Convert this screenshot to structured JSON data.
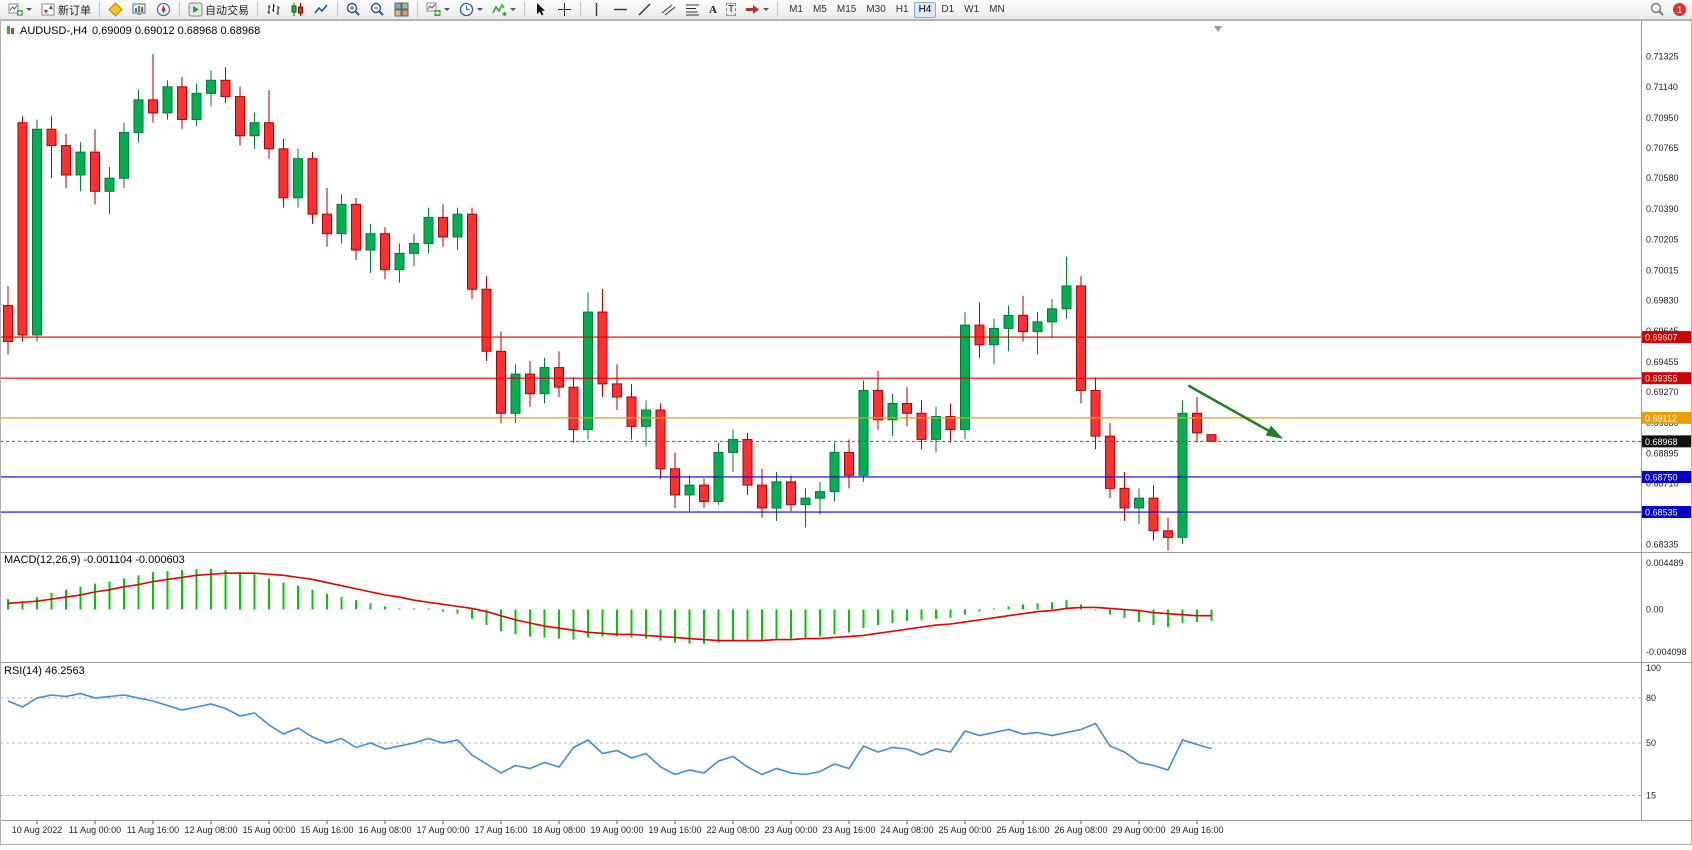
{
  "toolbar": {
    "new_order": "新订单",
    "autotrading": "自动交易",
    "text_tool_glyph": "A",
    "label_tool_glyph": "T",
    "timeframes": [
      "M1",
      "M5",
      "M15",
      "M30",
      "H1",
      "H4",
      "D1",
      "W1",
      "MN"
    ],
    "active_timeframe": "H4",
    "badge": "1"
  },
  "header": {
    "symbol": "AUDUSD-,H4",
    "ohlc": "0.69009 0.69012 0.68968 0.68968"
  },
  "indicators": {
    "macd_label": "MACD(12,26,9) -0.001104 -0.000603",
    "rsi_label": "RSI(14) 46.2563"
  },
  "colors": {
    "bull": "#00b050",
    "bull_border": "#007a38",
    "bear": "#ff3030",
    "bear_border": "#b00000",
    "macd_hist": "#00c800",
    "macd_signal": "#e00000",
    "rsi_line": "#3e8fd0",
    "axis_text": "#222222",
    "current_price_line": "#555555"
  },
  "chart_data": {
    "type": "candlestick",
    "symbol": "AUDUSD",
    "timeframe": "H4",
    "grid": "off",
    "candles": [
      [
        0.698,
        0.6992,
        0.695,
        0.6958
      ],
      [
        0.7092,
        0.7096,
        0.6958,
        0.6962
      ],
      [
        0.6962,
        0.7094,
        0.6958,
        0.7088
      ],
      [
        0.7088,
        0.7096,
        0.7058,
        0.7078
      ],
      [
        0.7078,
        0.7085,
        0.7052,
        0.706
      ],
      [
        0.706,
        0.708,
        0.705,
        0.7074
      ],
      [
        0.7074,
        0.7088,
        0.7042,
        0.705
      ],
      [
        0.705,
        0.7065,
        0.7036,
        0.7058
      ],
      [
        0.7058,
        0.7092,
        0.7052,
        0.7086
      ],
      [
        0.7086,
        0.7112,
        0.708,
        0.7106
      ],
      [
        0.7106,
        0.7134,
        0.7092,
        0.7098
      ],
      [
        0.7098,
        0.7118,
        0.7094,
        0.7114
      ],
      [
        0.7114,
        0.712,
        0.7088,
        0.7094
      ],
      [
        0.7094,
        0.7116,
        0.709,
        0.711
      ],
      [
        0.711,
        0.7124,
        0.7102,
        0.7118
      ],
      [
        0.7118,
        0.7126,
        0.7104,
        0.7108
      ],
      [
        0.7108,
        0.7114,
        0.7078,
        0.7084
      ],
      [
        0.7084,
        0.7098,
        0.7076,
        0.7092
      ],
      [
        0.7092,
        0.7112,
        0.707,
        0.7076
      ],
      [
        0.7076,
        0.7082,
        0.704,
        0.7046
      ],
      [
        0.7046,
        0.7076,
        0.704,
        0.707
      ],
      [
        0.707,
        0.7074,
        0.703,
        0.7036
      ],
      [
        0.7036,
        0.7052,
        0.7016,
        0.7024
      ],
      [
        0.7024,
        0.7048,
        0.7018,
        0.7042
      ],
      [
        0.7042,
        0.7046,
        0.7008,
        0.7014
      ],
      [
        0.7014,
        0.703,
        0.7,
        0.7024
      ],
      [
        0.7024,
        0.7028,
        0.6996,
        0.7002
      ],
      [
        0.7002,
        0.7018,
        0.6994,
        0.7012
      ],
      [
        0.7012,
        0.7024,
        0.7004,
        0.7018
      ],
      [
        0.7018,
        0.704,
        0.7012,
        0.7034
      ],
      [
        0.7034,
        0.7042,
        0.7016,
        0.7022
      ],
      [
        0.7022,
        0.704,
        0.7014,
        0.7036
      ],
      [
        0.7036,
        0.704,
        0.6984,
        0.699
      ],
      [
        0.699,
        0.6998,
        0.6946,
        0.6952
      ],
      [
        0.6952,
        0.6964,
        0.6908,
        0.6914
      ],
      [
        0.6914,
        0.6944,
        0.6908,
        0.6938
      ],
      [
        0.6938,
        0.6946,
        0.6918,
        0.6926
      ],
      [
        0.6926,
        0.6948,
        0.692,
        0.6942
      ],
      [
        0.6942,
        0.6952,
        0.6924,
        0.693
      ],
      [
        0.693,
        0.6936,
        0.6896,
        0.6904
      ],
      [
        0.6904,
        0.6988,
        0.6898,
        0.6976
      ],
      [
        0.6976,
        0.699,
        0.6924,
        0.6932
      ],
      [
        0.6932,
        0.6944,
        0.6916,
        0.6924
      ],
      [
        0.6924,
        0.6932,
        0.6898,
        0.6906
      ],
      [
        0.6906,
        0.6922,
        0.6894,
        0.6916
      ],
      [
        0.6916,
        0.692,
        0.6874,
        0.688
      ],
      [
        0.688,
        0.689,
        0.6856,
        0.6864
      ],
      [
        0.6864,
        0.6876,
        0.6854,
        0.687
      ],
      [
        0.687,
        0.6874,
        0.6856,
        0.686
      ],
      [
        0.686,
        0.6896,
        0.6858,
        0.689
      ],
      [
        0.689,
        0.6904,
        0.6878,
        0.6898
      ],
      [
        0.6898,
        0.6902,
        0.6864,
        0.687
      ],
      [
        0.687,
        0.688,
        0.685,
        0.6856
      ],
      [
        0.6856,
        0.6878,
        0.6848,
        0.6872
      ],
      [
        0.6872,
        0.6876,
        0.6854,
        0.6858
      ],
      [
        0.6858,
        0.6868,
        0.6844,
        0.6862
      ],
      [
        0.6862,
        0.6872,
        0.6852,
        0.6866
      ],
      [
        0.6866,
        0.6896,
        0.686,
        0.689
      ],
      [
        0.689,
        0.6898,
        0.6868,
        0.6876
      ],
      [
        0.6876,
        0.6934,
        0.6872,
        0.6928
      ],
      [
        0.6928,
        0.694,
        0.6904,
        0.691
      ],
      [
        0.691,
        0.6926,
        0.69,
        0.692
      ],
      [
        0.692,
        0.693,
        0.6906,
        0.6914
      ],
      [
        0.6914,
        0.6922,
        0.6892,
        0.6898
      ],
      [
        0.6898,
        0.6918,
        0.689,
        0.6912
      ],
      [
        0.6912,
        0.692,
        0.6896,
        0.6904
      ],
      [
        0.6904,
        0.6976,
        0.6898,
        0.6968
      ],
      [
        0.6968,
        0.6982,
        0.6948,
        0.6956
      ],
      [
        0.6956,
        0.6972,
        0.6944,
        0.6966
      ],
      [
        0.6966,
        0.698,
        0.6952,
        0.6974
      ],
      [
        0.6974,
        0.6986,
        0.6958,
        0.6964
      ],
      [
        0.6964,
        0.6976,
        0.695,
        0.697
      ],
      [
        0.697,
        0.6984,
        0.696,
        0.6978
      ],
      [
        0.6978,
        0.701,
        0.6972,
        0.6992
      ],
      [
        0.6992,
        0.6998,
        0.692,
        0.6928
      ],
      [
        0.6928,
        0.6936,
        0.6892,
        0.69
      ],
      [
        0.69,
        0.6908,
        0.6862,
        0.6868
      ],
      [
        0.6868,
        0.6878,
        0.6848,
        0.6856
      ],
      [
        0.6856,
        0.6868,
        0.6846,
        0.6862
      ],
      [
        0.6862,
        0.687,
        0.6836,
        0.6842
      ],
      [
        0.6842,
        0.685,
        0.683,
        0.6838
      ],
      [
        0.6838,
        0.6922,
        0.6834,
        0.6914
      ],
      [
        0.6914,
        0.6924,
        0.6896,
        0.6902
      ],
      [
        0.69009,
        0.69012,
        0.68968,
        0.68968
      ]
    ],
    "price_axis_ticks": [
      "0.71325",
      "0.71140",
      "0.70950",
      "0.70765",
      "0.70580",
      "0.70390",
      "0.70205",
      "0.70015",
      "0.69830",
      "0.69645",
      "0.69455",
      "0.69270",
      "0.69080",
      "0.68895",
      "0.68710",
      "0.68525",
      "0.68335"
    ],
    "levels": [
      {
        "price": 0.69607,
        "color": "#e00000"
      },
      {
        "price": 0.69355,
        "color": "#e00000"
      },
      {
        "price": 0.69112,
        "color": "#e8a000"
      },
      {
        "price": 0.6875,
        "color": "#0000c8"
      },
      {
        "price": 0.68535,
        "color": "#0000c8"
      }
    ],
    "current_price": {
      "price": 0.68968,
      "text": "0.68968",
      "tag_bg": "#111111"
    },
    "price_tags": [
      {
        "price": 0.69607,
        "text": "0.69607",
        "bg": "#d00000"
      },
      {
        "price": 0.69355,
        "text": "0.69355",
        "bg": "#d00000"
      },
      {
        "price": 0.69112,
        "text": "0.69112",
        "bg": "#e8a000"
      },
      {
        "price": 0.68968,
        "text": "0.68968",
        "bg": "#111111"
      },
      {
        "price": 0.6875,
        "text": "0.68750",
        "bg": "#0000c8"
      },
      {
        "price": 0.68535,
        "text": "0.68535",
        "bg": "#0000c8"
      }
    ],
    "time_axis": [
      {
        "bar": 2,
        "label": "10 Aug 2022"
      },
      {
        "bar": 6,
        "label": "11 Aug 00:00"
      },
      {
        "bar": 10,
        "label": "11 Aug 16:00"
      },
      {
        "bar": 14,
        "label": "12 Aug 08:00"
      },
      {
        "bar": 18,
        "label": "15 Aug 00:00"
      },
      {
        "bar": 22,
        "label": "15 Aug 16:00"
      },
      {
        "bar": 26,
        "label": "16 Aug 08:00"
      },
      {
        "bar": 30,
        "label": "17 Aug 00:00"
      },
      {
        "bar": 34,
        "label": "17 Aug 16:00"
      },
      {
        "bar": 38,
        "label": "18 Aug 08:00"
      },
      {
        "bar": 42,
        "label": "19 Aug 00:00"
      },
      {
        "bar": 46,
        "label": "19 Aug 16:00"
      },
      {
        "bar": 50,
        "label": "22 Aug 08:00"
      },
      {
        "bar": 54,
        "label": "23 Aug 00:00"
      },
      {
        "bar": 58,
        "label": "23 Aug 16:00"
      },
      {
        "bar": 62,
        "label": "24 Aug 08:00"
      },
      {
        "bar": 66,
        "label": "25 Aug 00:00"
      },
      {
        "bar": 70,
        "label": "25 Aug 16:00"
      },
      {
        "bar": 74,
        "label": "26 Aug 08:00"
      },
      {
        "bar": 78,
        "label": "29 Aug 00:00"
      },
      {
        "bar": 82,
        "label": "29 Aug 16:00"
      }
    ],
    "macd": {
      "label": "MACD(12,26,9) -0.001104 -0.000603",
      "axis": [
        {
          "value": 0.004489,
          "label": "0.004489"
        },
        {
          "value": 0,
          "label": "0.00"
        },
        {
          "value": -0.004098,
          "label": "-0.004098"
        }
      ],
      "histogram": [
        0.001,
        0.0008,
        0.0012,
        0.0016,
        0.0019,
        0.0022,
        0.0025,
        0.0027,
        0.003,
        0.0033,
        0.0036,
        0.0037,
        0.0038,
        0.0039,
        0.0039,
        0.0038,
        0.0036,
        0.0034,
        0.003,
        0.0026,
        0.0023,
        0.0019,
        0.0015,
        0.0012,
        0.0009,
        0.0006,
        0.0003,
        0.0001,
        0.0,
        0.0001,
        -0.0002,
        -0.0004,
        -0.0009,
        -0.0015,
        -0.0021,
        -0.0024,
        -0.0026,
        -0.0027,
        -0.0028,
        -0.0029,
        -0.0027,
        -0.0026,
        -0.0026,
        -0.0027,
        -0.0028,
        -0.003,
        -0.0032,
        -0.0033,
        -0.0033,
        -0.0032,
        -0.003,
        -0.0029,
        -0.0029,
        -0.0028,
        -0.0028,
        -0.0027,
        -0.0026,
        -0.0024,
        -0.0022,
        -0.0018,
        -0.0015,
        -0.0013,
        -0.0011,
        -0.001,
        -0.0009,
        -0.0008,
        -0.0005,
        -0.0002,
        0.0001,
        0.0003,
        0.0005,
        0.0006,
        0.0007,
        0.0009,
        0.0005,
        -0.0001,
        -0.0005,
        -0.0008,
        -0.0012,
        -0.0015,
        -0.0017,
        -0.0013,
        -0.0012,
        -0.0011
      ],
      "signal": [
        0.0006,
        0.0007,
        0.0008,
        0.001,
        0.0012,
        0.0014,
        0.0017,
        0.0019,
        0.0022,
        0.0024,
        0.0027,
        0.0029,
        0.0031,
        0.0033,
        0.0034,
        0.0035,
        0.0035,
        0.0035,
        0.0034,
        0.0033,
        0.0031,
        0.0029,
        0.0026,
        0.0023,
        0.002,
        0.0017,
        0.0014,
        0.0012,
        0.0009,
        0.0007,
        0.0005,
        0.0003,
        0.0001,
        -0.0002,
        -0.0006,
        -0.001,
        -0.0013,
        -0.0016,
        -0.0018,
        -0.002,
        -0.0022,
        -0.0023,
        -0.0024,
        -0.0024,
        -0.0025,
        -0.0026,
        -0.0027,
        -0.0028,
        -0.0029,
        -0.003,
        -0.003,
        -0.003,
        -0.003,
        -0.0029,
        -0.0029,
        -0.0028,
        -0.0028,
        -0.0027,
        -0.0026,
        -0.0025,
        -0.0023,
        -0.0021,
        -0.0019,
        -0.0017,
        -0.0015,
        -0.0014,
        -0.0012,
        -0.001,
        -0.0008,
        -0.0006,
        -0.0004,
        -0.0002,
        -0.0001,
        0.0001,
        0.0002,
        0.0002,
        0.0001,
        0.0,
        -0.0001,
        -0.0003,
        -0.0004,
        -0.0005,
        -0.0006,
        -0.0006
      ]
    },
    "rsi": {
      "label": "RSI(14) 46.2563",
      "axis": [
        {
          "value": 100,
          "label": "100"
        },
        {
          "value": 80,
          "label": "80"
        },
        {
          "value": 50,
          "label": "50"
        },
        {
          "value": 15,
          "label": "15"
        }
      ],
      "level_lines": [
        80,
        50,
        15
      ],
      "values": [
        78,
        74,
        80,
        82,
        81,
        83,
        80,
        81,
        82,
        80,
        78,
        75,
        72,
        74,
        76,
        73,
        68,
        70,
        62,
        56,
        60,
        54,
        50,
        53,
        47,
        50,
        46,
        48,
        50,
        53,
        50,
        52,
        42,
        36,
        30,
        35,
        33,
        37,
        34,
        47,
        52,
        43,
        45,
        40,
        43,
        34,
        29,
        32,
        30,
        38,
        41,
        34,
        29,
        33,
        30,
        29,
        31,
        36,
        33,
        48,
        44,
        47,
        46,
        42,
        46,
        44,
        58,
        55,
        57,
        59,
        56,
        57,
        55,
        57,
        59,
        63,
        48,
        44,
        37,
        35,
        32,
        52,
        49,
        46.26
      ]
    },
    "annotations": {
      "arrow": {
        "bar_from": 81.4,
        "price_from": 0.6931,
        "bar_to": 87.7,
        "price_to": 0.68995,
        "color": "#1e7d1e"
      }
    }
  }
}
